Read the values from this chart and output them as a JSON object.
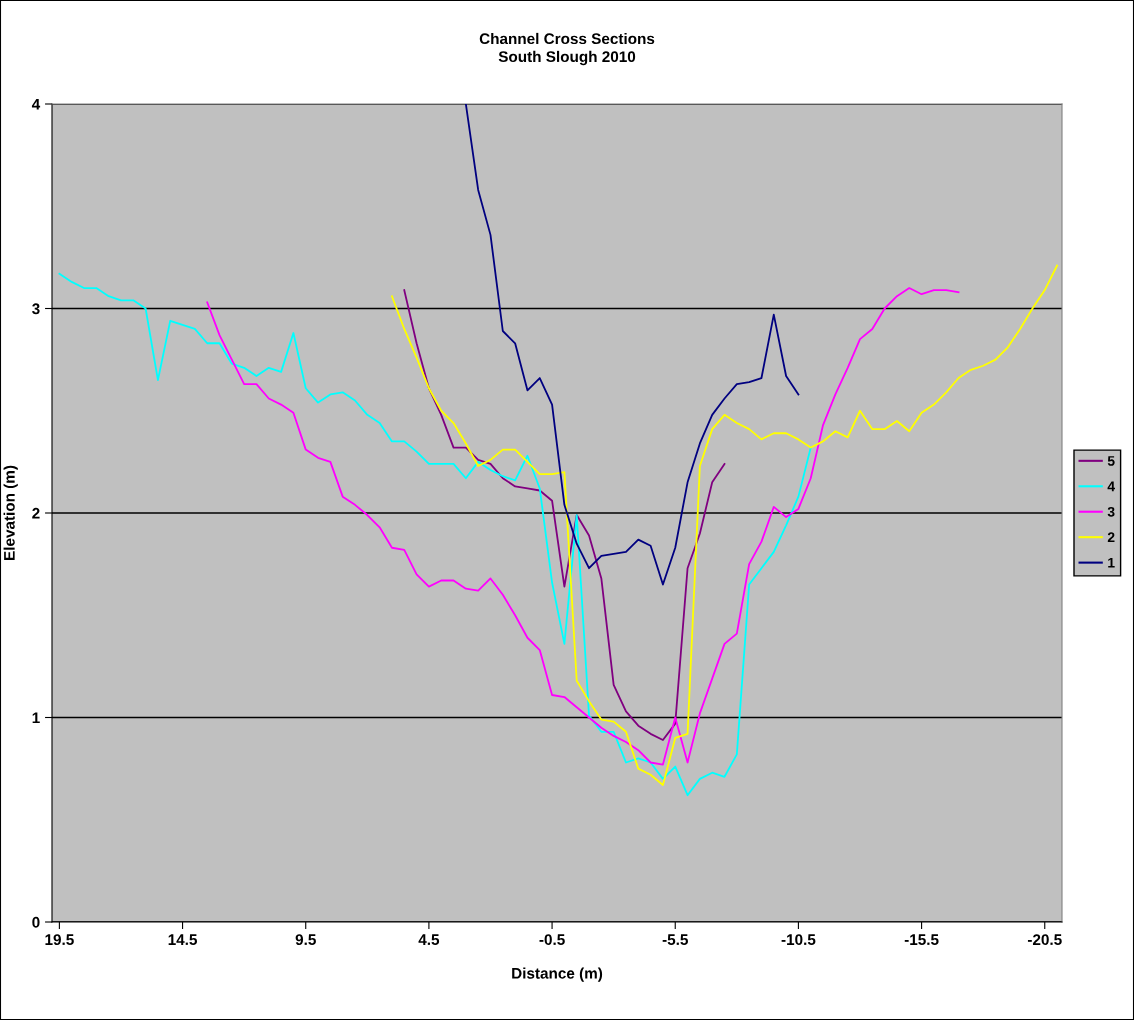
{
  "chart_data": {
    "type": "line",
    "title": "Channel Cross Sections",
    "subtitle": "South Slough 2010",
    "xlabel": "Distance (m)",
    "ylabel": "Elevation (m)",
    "xlim": [
      19.8,
      -21.2
    ],
    "xticks": [
      19.5,
      14.5,
      9.5,
      4.5,
      -0.5,
      -5.5,
      -10.5,
      -15.5,
      -20.5
    ],
    "ylim": [
      0,
      4
    ],
    "yticks": [
      0,
      1,
      2,
      3,
      4
    ],
    "grid": "y",
    "legend": "right",
    "marker": "none",
    "line_style": "solid",
    "series": [
      {
        "name": "5",
        "color": "#800080",
        "x": [
          5.5,
          5,
          4.5,
          4,
          3.5,
          3,
          2.5,
          2,
          1.5,
          1,
          0.5,
          0,
          -0.5,
          -1,
          -1.5,
          -2,
          -2.5,
          -3,
          -3.5,
          -4,
          -4.5,
          -5,
          -5.5,
          -6,
          -6.5,
          -7,
          -7.5
        ],
        "values": [
          3.09,
          2.83,
          2.61,
          2.48,
          2.32,
          2.32,
          2.26,
          2.24,
          2.17,
          2.13,
          2.12,
          2.11,
          2.06,
          1.64,
          1.99,
          1.89,
          1.68,
          1.16,
          1.03,
          0.96,
          0.92,
          0.89,
          0.97,
          1.73,
          1.9,
          2.15,
          2.24
        ]
      },
      {
        "name": "4",
        "color": "#00ffff",
        "x": [
          19.5,
          19,
          18.5,
          18,
          17.5,
          17,
          16.5,
          16,
          15.5,
          15,
          14.5,
          14,
          13.5,
          13,
          12.5,
          12,
          11.5,
          11,
          10.5,
          10,
          9.5,
          9,
          8.5,
          8,
          7.5,
          7,
          6.5,
          6,
          5.5,
          5,
          4.5,
          4,
          3.5,
          3,
          2.5,
          2,
          1.5,
          1,
          0.5,
          0,
          -0.5,
          -1,
          -1.5,
          -2,
          -2.5,
          -3,
          -3.5,
          -4,
          -4.5,
          -5,
          -5.5,
          -6,
          -6.5,
          -7,
          -7.5,
          -8,
          -8.5,
          -9,
          -9.5,
          -10,
          -10.5,
          -11
        ],
        "values": [
          3.17,
          3.13,
          3.1,
          3.1,
          3.06,
          3.04,
          3.04,
          3.0,
          2.65,
          2.94,
          2.92,
          2.9,
          2.83,
          2.83,
          2.73,
          2.71,
          2.67,
          2.71,
          2.69,
          2.88,
          2.61,
          2.54,
          2.58,
          2.59,
          2.55,
          2.48,
          2.44,
          2.35,
          2.35,
          2.3,
          2.24,
          2.24,
          2.24,
          2.17,
          2.25,
          2.21,
          2.18,
          2.16,
          2.28,
          2.12,
          1.66,
          1.36,
          1.99,
          1.01,
          0.93,
          0.93,
          0.78,
          0.8,
          0.78,
          0.7,
          0.76,
          0.62,
          0.7,
          0.73,
          0.71,
          0.82,
          1.65,
          1.73,
          1.81,
          1.94,
          2.08,
          2.32
        ]
      },
      {
        "name": "3",
        "color": "#ff00ff",
        "x": [
          13.5,
          13,
          12.5,
          12,
          11.5,
          11,
          10.5,
          10,
          9.5,
          9,
          8.5,
          8,
          7.5,
          7,
          6.5,
          6,
          5.5,
          5,
          4.5,
          4,
          3.5,
          3,
          2.5,
          2,
          1.5,
          1,
          0.5,
          0,
          -0.5,
          -1,
          -1.5,
          -2,
          -2.5,
          -3,
          -3.5,
          -4,
          -4.5,
          -5,
          -5.5,
          -6,
          -6.5,
          -7,
          -7.5,
          -8,
          -8.5,
          -9,
          -9.5,
          -10,
          -10.5,
          -11,
          -11.5,
          -12,
          -12.5,
          -13,
          -13.5,
          -14,
          -14.5,
          -15,
          -15.5,
          -16,
          -16.5,
          -17
        ],
        "values": [
          3.03,
          2.87,
          2.75,
          2.63,
          2.63,
          2.56,
          2.53,
          2.49,
          2.31,
          2.27,
          2.25,
          2.08,
          2.04,
          1.99,
          1.93,
          1.83,
          1.82,
          1.7,
          1.64,
          1.67,
          1.67,
          1.63,
          1.62,
          1.68,
          1.6,
          1.5,
          1.39,
          1.33,
          1.11,
          1.1,
          1.05,
          1.0,
          0.95,
          0.91,
          0.88,
          0.84,
          0.78,
          0.77,
          1.0,
          0.78,
          1.02,
          1.19,
          1.36,
          1.41,
          1.75,
          1.86,
          2.03,
          1.98,
          2.02,
          2.17,
          2.43,
          2.58,
          2.71,
          2.85,
          2.9,
          3.0,
          3.06,
          3.1,
          3.07,
          3.09,
          3.09,
          3.08
        ]
      },
      {
        "name": "2",
        "color": "#ffff00",
        "x": [
          6,
          5.5,
          5,
          4.5,
          4,
          3.5,
          3,
          2.5,
          2,
          1.5,
          1,
          0.5,
          0,
          -0.5,
          -1,
          -1.5,
          -2,
          -2.5,
          -3,
          -3.5,
          -4,
          -4.5,
          -5,
          -5.5,
          -6,
          -6.5,
          -7,
          -7.5,
          -8,
          -8.5,
          -9,
          -9.5,
          -10,
          -10.5,
          -11,
          -11.5,
          -12,
          -12.5,
          -13,
          -13.5,
          -14,
          -14.5,
          -15,
          -15.5,
          -16,
          -16.5,
          -17,
          -17.5,
          -18,
          -18.5,
          -19,
          -19.5,
          -20,
          -20.5,
          -21
        ],
        "values": [
          3.06,
          2.9,
          2.76,
          2.61,
          2.5,
          2.44,
          2.34,
          2.23,
          2.26,
          2.31,
          2.31,
          2.25,
          2.19,
          2.19,
          2.2,
          1.18,
          1.08,
          0.99,
          0.98,
          0.93,
          0.75,
          0.72,
          0.67,
          0.9,
          0.92,
          2.23,
          2.41,
          2.48,
          2.44,
          2.41,
          2.36,
          2.39,
          2.39,
          2.36,
          2.32,
          2.35,
          2.4,
          2.37,
          2.5,
          2.41,
          2.41,
          2.45,
          2.4,
          2.49,
          2.53,
          2.59,
          2.66,
          2.7,
          2.72,
          2.75,
          2.81,
          2.9,
          3.0,
          3.09,
          3.21
        ]
      },
      {
        "name": "1",
        "color": "#000080",
        "x": [
          3,
          2.5,
          2,
          1.5,
          1,
          0.5,
          0,
          -0.5,
          -1,
          -1.5,
          -2,
          -2.5,
          -3,
          -3.5,
          -4,
          -4.5,
          -5,
          -5.5,
          -6,
          -6.5,
          -7,
          -7.5,
          -8,
          -8.5,
          -9,
          -9.5,
          -10,
          -10.5
        ],
        "values": [
          4.0,
          3.58,
          3.36,
          2.89,
          2.83,
          2.6,
          2.66,
          2.53,
          2.04,
          1.85,
          1.73,
          1.79,
          1.8,
          1.81,
          1.87,
          1.84,
          1.65,
          1.83,
          2.15,
          2.34,
          2.48,
          2.56,
          2.63,
          2.64,
          2.66,
          2.97,
          2.67,
          2.58
        ]
      }
    ]
  }
}
